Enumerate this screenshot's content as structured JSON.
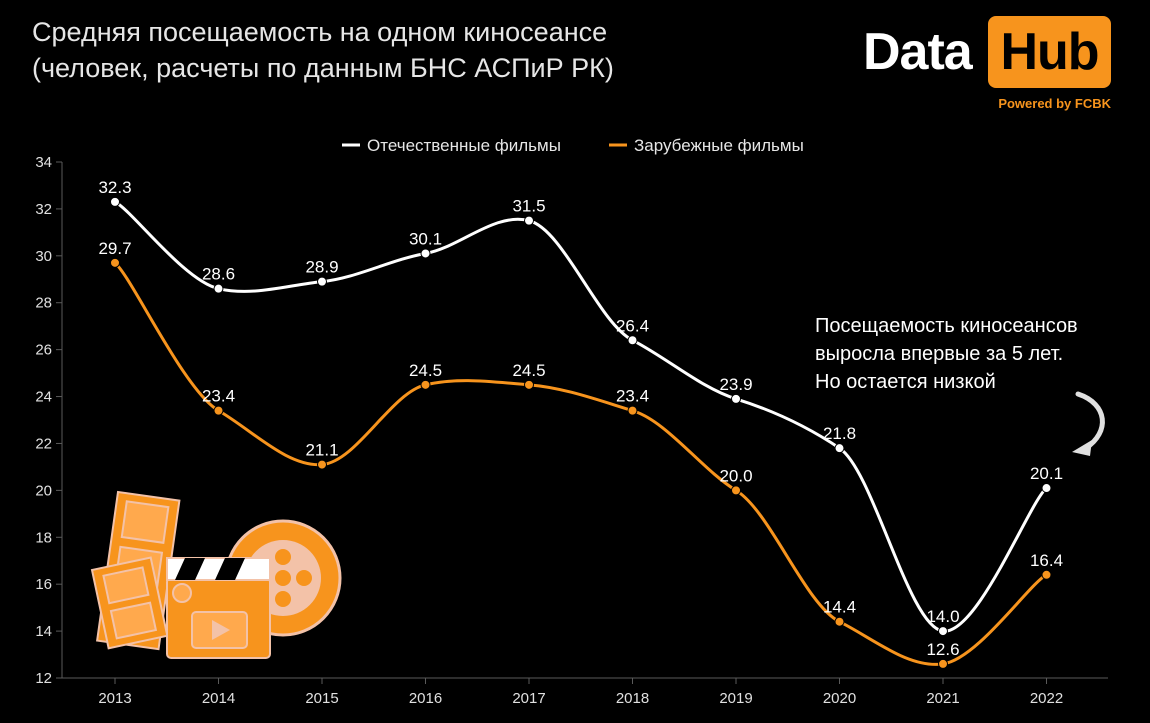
{
  "title": {
    "line1": "Средняя посещаемость на одном киносеансе",
    "line2": "(человек, расчеты по данным БНС АСПиР РК)"
  },
  "logo": {
    "data_word": "Data",
    "hub_word": "Hub",
    "powered_by": "Powered by FCBK",
    "accent_color": "#f7941d"
  },
  "annotation": {
    "line1": "Посещаемость киносеансов",
    "line2": "выросла впервые за 5 лет.",
    "line3": "Но остается низкой",
    "arrow_icon": "curved-arrow-down-icon"
  },
  "chart_data": {
    "type": "line",
    "categories": [
      "2013",
      "2014",
      "2015",
      "2016",
      "2017",
      "2018",
      "2019",
      "2020",
      "2021",
      "2022"
    ],
    "series": [
      {
        "name": "Отечественные фильмы",
        "color": "#ffffff",
        "values": [
          32.3,
          28.6,
          28.9,
          30.1,
          31.5,
          26.4,
          23.9,
          21.8,
          14.0,
          20.1
        ],
        "labels": [
          "32.3",
          "28.6",
          "28.9",
          "30.1",
          "31.5",
          "26.4",
          "23.9",
          "21.8",
          "14.0",
          "20.1"
        ]
      },
      {
        "name": "Зарубежные фильмы",
        "color": "#f7941d",
        "values": [
          29.7,
          23.4,
          21.1,
          24.5,
          24.5,
          23.4,
          20.0,
          14.4,
          12.6,
          16.4
        ],
        "labels": [
          "29.7",
          "23.4",
          "21.1",
          "24.5",
          "24.5",
          "23.4",
          "20.0",
          "14.4",
          "12.6",
          "16.4"
        ]
      }
    ],
    "ylim": [
      12,
      34
    ],
    "yticks": [
      "12",
      "14",
      "16",
      "18",
      "20",
      "22",
      "24",
      "26",
      "28",
      "30",
      "32",
      "34"
    ],
    "legend_position": "top-center",
    "grid": false
  }
}
